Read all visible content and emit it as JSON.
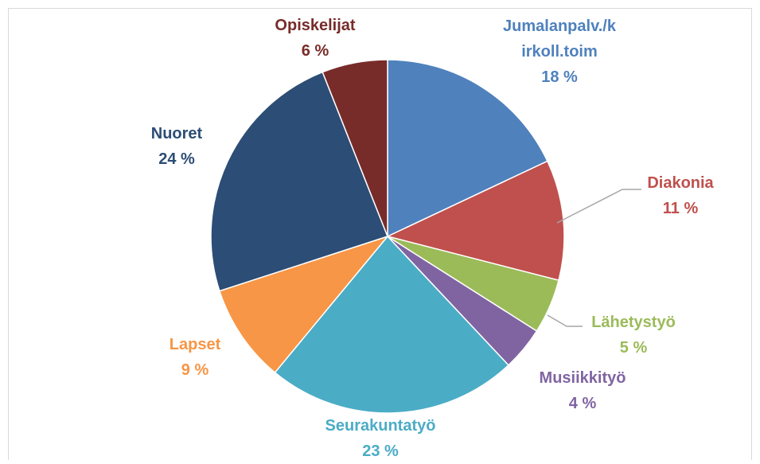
{
  "chart_data": {
    "type": "pie",
    "categories": [
      "Jumalanpalv./kirkoll.toim",
      "Diakonia",
      "Lähetystyö",
      "Musiikkityö",
      "Seurakuntatyö",
      "Lapset",
      "Nuoret",
      "Opiskelijat"
    ],
    "values": [
      18,
      11,
      5,
      4,
      23,
      9,
      24,
      6
    ],
    "value_labels": [
      "18 %",
      "11 %",
      "5 %",
      "4 %",
      "23 %",
      "9 %",
      "24 %",
      "6 %"
    ],
    "colors": [
      "#4f81bd",
      "#c0504d",
      "#9bbb59",
      "#8064a2",
      "#4bacc6",
      "#f79646",
      "#2c4d75",
      "#772c2a"
    ]
  }
}
